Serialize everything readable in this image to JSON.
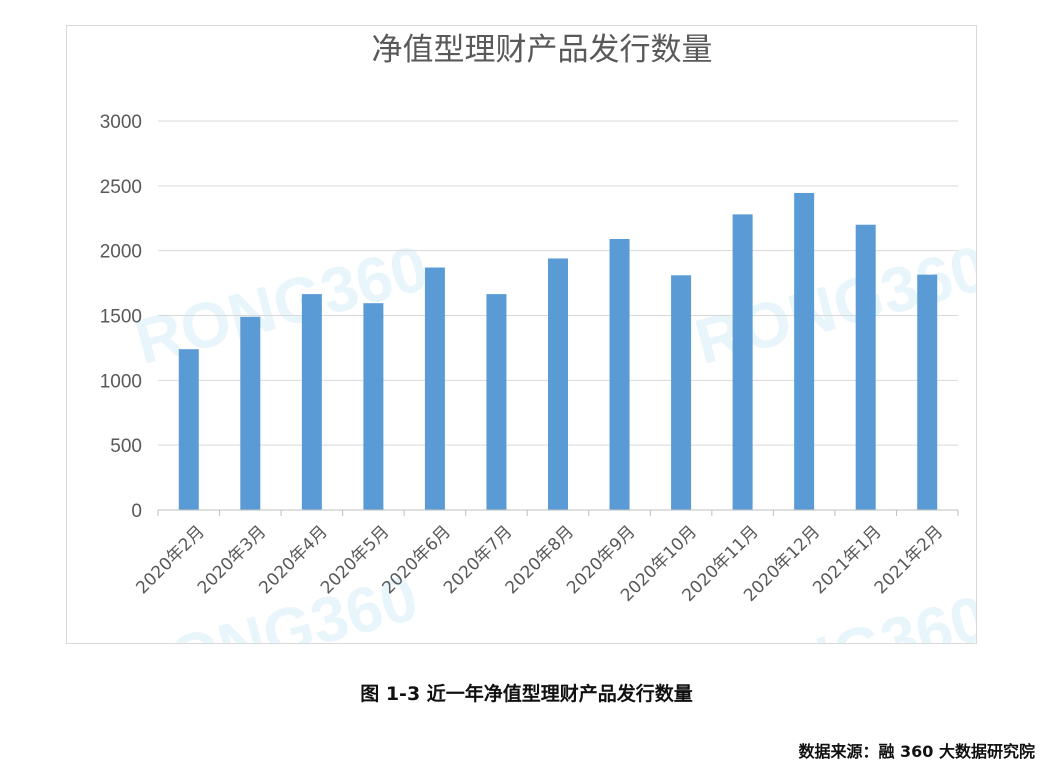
{
  "chart_data": {
    "type": "bar",
    "title": "净值型理财产品发行数量",
    "xlabel": "",
    "ylabel": "",
    "categories": [
      "2020年2月",
      "2020年3月",
      "2020年4月",
      "2020年5月",
      "2020年6月",
      "2020年7月",
      "2020年8月",
      "2020年9月",
      "2020年10月",
      "2020年11月",
      "2020年12月",
      "2021年1月",
      "2021年2月"
    ],
    "values": [
      1240,
      1490,
      1665,
      1595,
      1870,
      1665,
      1940,
      2090,
      1810,
      2280,
      2445,
      2200,
      1815
    ],
    "ylim": [
      0,
      3000
    ],
    "yticks": [
      0,
      500,
      1000,
      1500,
      2000,
      2500,
      3000
    ],
    "grid": true,
    "legend": "none",
    "bar_color": "#5b9bd5",
    "watermark": "RONG360"
  },
  "caption": "图 1-3 近一年净值型理财产品发行数量",
  "source": "数据来源：融 360 大数据研究院"
}
